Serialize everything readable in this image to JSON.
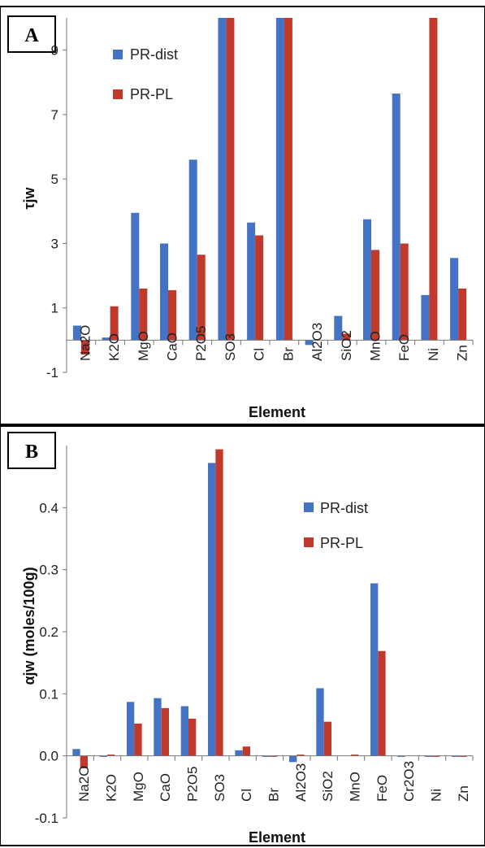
{
  "colors": {
    "pr_dist": "#4472C4",
    "pr_pl": "#C0392B"
  },
  "chart_data": [
    {
      "type": "bar",
      "panel_label": "A",
      "xlabel": "Element",
      "ylabel": "τjw",
      "ylim": [
        -1,
        10
      ],
      "yticks": [
        -1,
        1,
        3,
        5,
        7,
        9
      ],
      "ytick_labels": [
        "-1",
        "1",
        "3",
        "5",
        "7",
        "9"
      ],
      "grid": false,
      "legend_position": "top-center",
      "categories": [
        "Na2O",
        "K2O",
        "MgO",
        "CaO",
        "P2O5",
        "SO3",
        "Cl",
        "Br",
        "Al2O3",
        "SiO2",
        "MnO",
        "FeO",
        "Ni",
        "Zn"
      ],
      "series": [
        {
          "name": "PR-dist",
          "values": [
            0.45,
            0.08,
            3.95,
            3.0,
            5.6,
            10,
            3.65,
            10,
            -0.15,
            0.75,
            3.75,
            7.65,
            1.4,
            2.55
          ]
        },
        {
          "name": "PR-PL",
          "values": [
            -0.45,
            1.05,
            1.6,
            1.55,
            2.65,
            10,
            3.25,
            10,
            0,
            0.2,
            2.8,
            3.0,
            10,
            1.6
          ]
        }
      ]
    },
    {
      "type": "bar",
      "panel_label": "B",
      "xlabel": "Element",
      "ylabel": "αjw (moles/100g)",
      "ylim": [
        -0.1,
        0.5
      ],
      "yticks": [
        -0.1,
        0.0,
        0.1,
        0.2,
        0.3,
        0.4
      ],
      "ytick_labels": [
        "-0.1",
        "0.0",
        "0.1",
        "0.2",
        "0.3",
        "0.4"
      ],
      "grid": false,
      "legend_position": "top-right",
      "categories": [
        "Na2O",
        "K2O",
        "MgO",
        "CaO",
        "P2O5",
        "SO3",
        "Cl",
        "Br",
        "Al2O3",
        "SiO2",
        "MnO",
        "FeO",
        "Cr2O3",
        "Ni",
        "Zn"
      ],
      "series": [
        {
          "name": "PR-dist",
          "values": [
            0.011,
            -0.001,
            0.087,
            0.093,
            0.08,
            0.472,
            0.009,
            -0.001,
            -0.01,
            0.109,
            0,
            0.278,
            -0.001,
            -0.001,
            -0.001
          ]
        },
        {
          "name": "PR-PL",
          "values": [
            -0.02,
            0.002,
            0.052,
            0.077,
            0.06,
            0.494,
            0.015,
            -0.001,
            0.002,
            0.055,
            0.002,
            0.169,
            0,
            -0.001,
            -0.001
          ]
        }
      ]
    }
  ]
}
